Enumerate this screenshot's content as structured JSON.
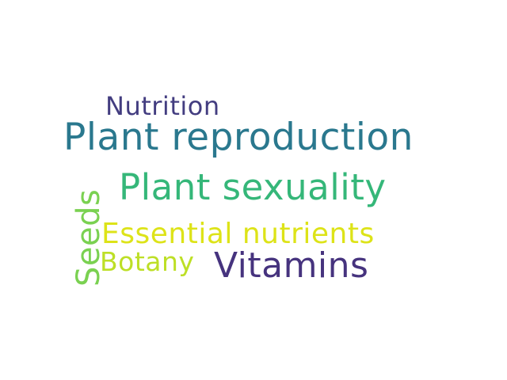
{
  "words": [
    {
      "text": "Nutrition",
      "color": "#433d80"
    },
    {
      "text": "Plant reproduction",
      "color": "#2a788e"
    },
    {
      "text": "Plant sexuality",
      "color": "#35b779"
    },
    {
      "text": "Essential nutrients",
      "color": "#dde318"
    },
    {
      "text": "Botany",
      "color": "#bddf26"
    },
    {
      "text": "Vitamins",
      "color": "#46337e"
    },
    {
      "text": "Seeds",
      "color": "#7ad151"
    }
  ]
}
